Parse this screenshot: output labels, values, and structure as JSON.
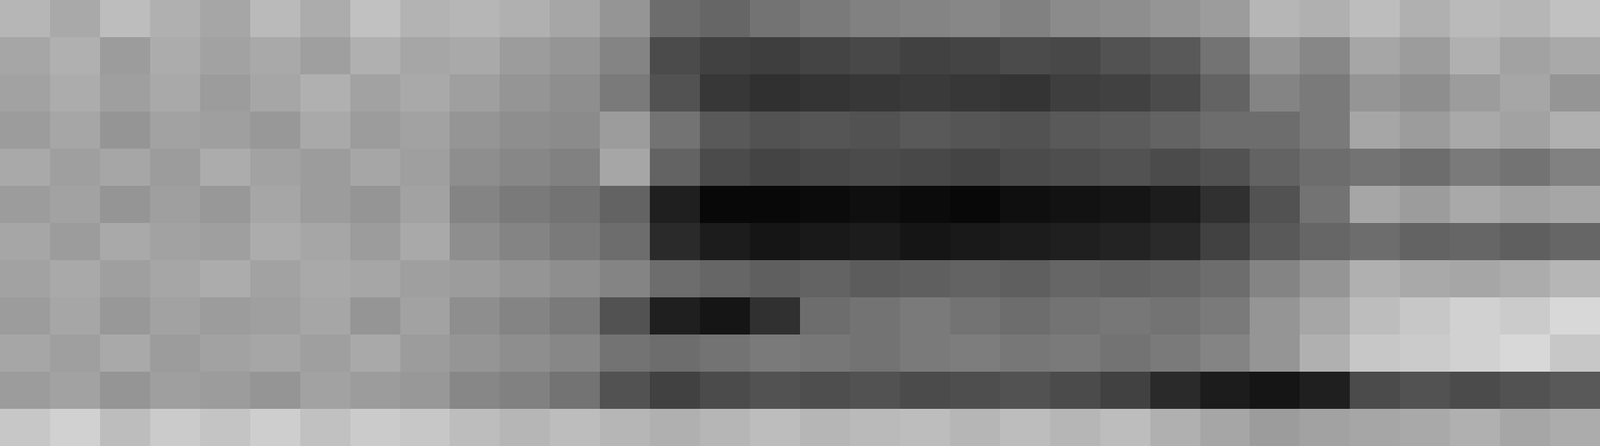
{
  "chart_data": {
    "type": "heatmap",
    "tick_labels": false,
    "values": [
      [
        60,
        56,
        62,
        58,
        55,
        61,
        57,
        63,
        59,
        60,
        58,
        55,
        50,
        38,
        36,
        40,
        42,
        44,
        45,
        46,
        44,
        47,
        48,
        50,
        52,
        60,
        58,
        62,
        58,
        61,
        60,
        63
      ],
      [
        55,
        58,
        52,
        57,
        54,
        56,
        53,
        58,
        55,
        56,
        52,
        50,
        45,
        28,
        25,
        24,
        26,
        27,
        25,
        26,
        28,
        27,
        30,
        32,
        40,
        50,
        46,
        55,
        52,
        58,
        54,
        56
      ],
      [
        54,
        57,
        53,
        56,
        52,
        55,
        58,
        54,
        56,
        53,
        50,
        48,
        42,
        30,
        22,
        20,
        21,
        22,
        23,
        22,
        21,
        24,
        25,
        28,
        35,
        45,
        42,
        50,
        48,
        52,
        55,
        50
      ],
      [
        52,
        55,
        50,
        54,
        53,
        51,
        56,
        52,
        54,
        50,
        48,
        47,
        52,
        40,
        32,
        30,
        31,
        30,
        32,
        31,
        30,
        32,
        33,
        35,
        38,
        38,
        42,
        55,
        52,
        56,
        54,
        58
      ],
      [
        56,
        53,
        55,
        52,
        57,
        54,
        52,
        55,
        53,
        48,
        46,
        44,
        55,
        35,
        28,
        26,
        27,
        28,
        27,
        26,
        28,
        29,
        30,
        28,
        30,
        35,
        38,
        40,
        38,
        42,
        40,
        44
      ],
      [
        52,
        54,
        50,
        53,
        51,
        55,
        52,
        50,
        54,
        45,
        42,
        40,
        35,
        15,
        8,
        8,
        9,
        10,
        9,
        8,
        10,
        11,
        12,
        14,
        20,
        30,
        40,
        55,
        52,
        56,
        54,
        55
      ],
      [
        55,
        52,
        56,
        54,
        53,
        57,
        55,
        52,
        56,
        48,
        45,
        42,
        38,
        18,
        14,
        12,
        13,
        14,
        12,
        13,
        14,
        15,
        16,
        18,
        25,
        32,
        36,
        38,
        35,
        36,
        34,
        36
      ],
      [
        54,
        56,
        53,
        55,
        57,
        54,
        56,
        55,
        53,
        52,
        50,
        48,
        45,
        38,
        36,
        34,
        35,
        33,
        34,
        35,
        34,
        36,
        35,
        36,
        38,
        45,
        50,
        58,
        56,
        55,
        57,
        60
      ],
      [
        52,
        55,
        51,
        54,
        52,
        53,
        55,
        50,
        54,
        48,
        45,
        42,
        30,
        15,
        12,
        20,
        38,
        40,
        42,
        40,
        38,
        40,
        41,
        40,
        42,
        50,
        55,
        62,
        65,
        68,
        66,
        70
      ],
      [
        55,
        53,
        56,
        52,
        54,
        55,
        53,
        56,
        52,
        50,
        48,
        46,
        40,
        38,
        40,
        42,
        41,
        40,
        42,
        43,
        41,
        42,
        40,
        42,
        45,
        50,
        58,
        65,
        66,
        68,
        70,
        65
      ],
      [
        52,
        54,
        50,
        53,
        52,
        50,
        54,
        52,
        51,
        46,
        44,
        40,
        30,
        25,
        28,
        30,
        29,
        30,
        28,
        29,
        30,
        28,
        25,
        18,
        14,
        12,
        15,
        28,
        30,
        28,
        30,
        32
      ],
      [
        65,
        68,
        62,
        66,
        64,
        67,
        63,
        66,
        65,
        62,
        60,
        62,
        60,
        58,
        60,
        62,
        60,
        61,
        62,
        60,
        62,
        60,
        62,
        58,
        55,
        52,
        54,
        55,
        56,
        58,
        55,
        57
      ]
    ]
  }
}
